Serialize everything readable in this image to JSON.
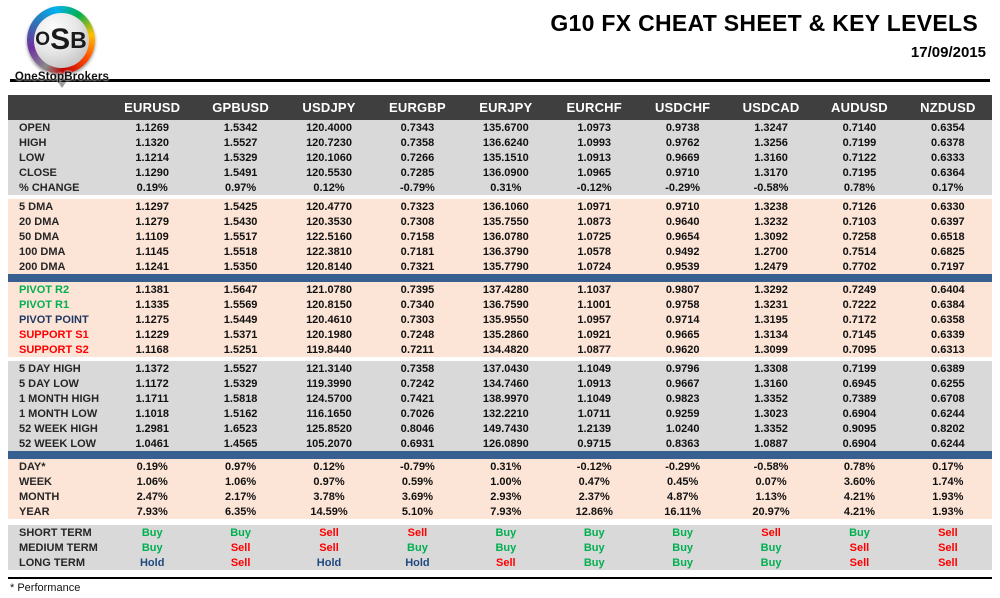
{
  "logo": {
    "abbr_parts": [
      "O",
      "S",
      "B"
    ],
    "name": "OneStopBrokers"
  },
  "header": {
    "title": "G10 FX CHEAT SHEET & KEY LEVELS",
    "date": "17/09/2015"
  },
  "footer": {
    "note": "* Performance"
  },
  "colors": {
    "header_bg": "#3f3f3f",
    "block_gray": "#d9d9d9",
    "block_peach": "#fce4d6",
    "divider_blue": "#376091",
    "buy_green": "#00b050",
    "sell_red": "#ff0000",
    "hold_blue": "#1f497d",
    "pivot_navy": "#1f3864"
  },
  "table": {
    "columns": [
      "EURUSD",
      "GPBUSD",
      "USDJPY",
      "EURGBP",
      "EURJPY",
      "EURCHF",
      "USDCHF",
      "USDCAD",
      "AUDUSD",
      "NZDUSD"
    ],
    "sections": [
      {
        "name": "ohlc",
        "bg": "gray",
        "after": "gap",
        "rows": [
          {
            "label": "OPEN",
            "values": [
              "1.1269",
              "1.5342",
              "120.4000",
              "0.7343",
              "135.6700",
              "1.0973",
              "0.9738",
              "1.3247",
              "0.7140",
              "0.6354"
            ]
          },
          {
            "label": "HIGH",
            "values": [
              "1.1320",
              "1.5527",
              "120.7230",
              "0.7358",
              "136.6240",
              "1.0993",
              "0.9762",
              "1.3256",
              "0.7199",
              "0.6378"
            ]
          },
          {
            "label": "LOW",
            "values": [
              "1.1214",
              "1.5329",
              "120.1060",
              "0.7266",
              "135.1510",
              "1.0913",
              "0.9669",
              "1.3160",
              "0.7122",
              "0.6333"
            ]
          },
          {
            "label": "CLOSE",
            "values": [
              "1.1290",
              "1.5491",
              "120.5530",
              "0.7285",
              "136.0900",
              "1.0965",
              "0.9710",
              "1.3170",
              "0.7195",
              "0.6364"
            ]
          },
          {
            "label": "% CHANGE",
            "values": [
              "0.19%",
              "0.97%",
              "0.12%",
              "-0.79%",
              "0.31%",
              "-0.12%",
              "-0.29%",
              "-0.58%",
              "0.78%",
              "0.17%"
            ]
          }
        ]
      },
      {
        "name": "moving-averages",
        "bg": "peach",
        "after": "divider",
        "rows": [
          {
            "label": "5 DMA",
            "values": [
              "1.1297",
              "1.5425",
              "120.4770",
              "0.7323",
              "136.1060",
              "1.0971",
              "0.9710",
              "1.3238",
              "0.7126",
              "0.6330"
            ]
          },
          {
            "label": "20 DMA",
            "values": [
              "1.1279",
              "1.5430",
              "120.3530",
              "0.7308",
              "135.7550",
              "1.0873",
              "0.9640",
              "1.3232",
              "0.7103",
              "0.6397"
            ]
          },
          {
            "label": "50 DMA",
            "values": [
              "1.1109",
              "1.5517",
              "122.5160",
              "0.7158",
              "136.0780",
              "1.0725",
              "0.9654",
              "1.3092",
              "0.7258",
              "0.6518"
            ]
          },
          {
            "label": "100 DMA",
            "values": [
              "1.1145",
              "1.5518",
              "122.3810",
              "0.7181",
              "136.3790",
              "1.0578",
              "0.9492",
              "1.2700",
              "0.7514",
              "0.6825"
            ]
          },
          {
            "label": "200 DMA",
            "values": [
              "1.1241",
              "1.5350",
              "120.8140",
              "0.7321",
              "135.7790",
              "1.0724",
              "0.9539",
              "1.2479",
              "0.7702",
              "0.7197"
            ]
          }
        ]
      },
      {
        "name": "pivots",
        "bg": "peach",
        "after": "gap",
        "rows": [
          {
            "label": "PIVOT R2",
            "label_color": "green",
            "values": [
              "1.1381",
              "1.5647",
              "121.0780",
              "0.7395",
              "137.4280",
              "1.1037",
              "0.9807",
              "1.3292",
              "0.7249",
              "0.6404"
            ]
          },
          {
            "label": "PIVOT R1",
            "label_color": "green",
            "values": [
              "1.1335",
              "1.5569",
              "120.8150",
              "0.7340",
              "136.7590",
              "1.1001",
              "0.9758",
              "1.3231",
              "0.7222",
              "0.6384"
            ]
          },
          {
            "label": "PIVOT POINT",
            "label_color": "navy",
            "values": [
              "1.1275",
              "1.5449",
              "120.4610",
              "0.7303",
              "135.9550",
              "1.0957",
              "0.9714",
              "1.3195",
              "0.7172",
              "0.6358"
            ]
          },
          {
            "label": "SUPPORT S1",
            "label_color": "red",
            "values": [
              "1.1229",
              "1.5371",
              "120.1980",
              "0.7248",
              "135.2860",
              "1.0921",
              "0.9665",
              "1.3134",
              "0.7145",
              "0.6339"
            ]
          },
          {
            "label": "SUPPORT S2",
            "label_color": "red",
            "values": [
              "1.1168",
              "1.5251",
              "119.8440",
              "0.7211",
              "134.4820",
              "1.0877",
              "0.9620",
              "1.3099",
              "0.7095",
              "0.6313"
            ]
          }
        ]
      },
      {
        "name": "ranges",
        "bg": "gray",
        "after": "divider",
        "rows": [
          {
            "label": "5 DAY HIGH",
            "values": [
              "1.1372",
              "1.5527",
              "121.3140",
              "0.7358",
              "137.0430",
              "1.1049",
              "0.9796",
              "1.3308",
              "0.7199",
              "0.6389"
            ]
          },
          {
            "label": "5 DAY LOW",
            "values": [
              "1.1172",
              "1.5329",
              "119.3990",
              "0.7242",
              "134.7460",
              "1.0913",
              "0.9667",
              "1.3160",
              "0.6945",
              "0.6255"
            ]
          },
          {
            "label": "1 MONTH HIGH",
            "values": [
              "1.1711",
              "1.5818",
              "124.5700",
              "0.7421",
              "138.9970",
              "1.1049",
              "0.9823",
              "1.3352",
              "0.7389",
              "0.6708"
            ]
          },
          {
            "label": "1 MONTH LOW",
            "values": [
              "1.1018",
              "1.5162",
              "116.1650",
              "0.7026",
              "132.2210",
              "1.0711",
              "0.9259",
              "1.3023",
              "0.6904",
              "0.6244"
            ]
          },
          {
            "label": "52 WEEK HIGH",
            "values": [
              "1.2981",
              "1.6523",
              "125.8520",
              "0.8046",
              "149.7430",
              "1.2139",
              "1.0240",
              "1.3352",
              "0.9095",
              "0.8202"
            ]
          },
          {
            "label": "52 WEEK LOW",
            "values": [
              "1.0461",
              "1.4565",
              "105.2070",
              "0.6931",
              "126.0890",
              "0.9715",
              "0.8363",
              "1.0887",
              "0.6904",
              "0.6244"
            ]
          }
        ]
      },
      {
        "name": "performance",
        "bg": "peach",
        "after": "gap-lg",
        "rows": [
          {
            "label": "DAY*",
            "values": [
              "0.19%",
              "0.97%",
              "0.12%",
              "-0.79%",
              "0.31%",
              "-0.12%",
              "-0.29%",
              "-0.58%",
              "0.78%",
              "0.17%"
            ]
          },
          {
            "label": "WEEK",
            "values": [
              "1.06%",
              "1.06%",
              "0.97%",
              "0.59%",
              "1.00%",
              "0.47%",
              "0.45%",
              "0.07%",
              "3.60%",
              "1.74%"
            ]
          },
          {
            "label": "MONTH",
            "values": [
              "2.47%",
              "2.17%",
              "3.78%",
              "3.69%",
              "2.93%",
              "2.37%",
              "4.87%",
              "1.13%",
              "4.21%",
              "1.93%"
            ]
          },
          {
            "label": "YEAR",
            "values": [
              "7.93%",
              "6.35%",
              "14.59%",
              "5.10%",
              "7.93%",
              "12.86%",
              "16.11%",
              "20.97%",
              "4.21%",
              "1.93%"
            ]
          }
        ]
      },
      {
        "name": "signals",
        "bg": "gray",
        "signals": true,
        "after": "none",
        "rows": [
          {
            "label": "SHORT TERM",
            "values": [
              "Buy",
              "Buy",
              "Sell",
              "Sell",
              "Buy",
              "Buy",
              "Buy",
              "Sell",
              "Buy",
              "Sell"
            ]
          },
          {
            "label": "MEDIUM TERM",
            "values": [
              "Buy",
              "Sell",
              "Sell",
              "Buy",
              "Buy",
              "Buy",
              "Buy",
              "Buy",
              "Sell",
              "Sell"
            ]
          },
          {
            "label": "LONG TERM",
            "values": [
              "Hold",
              "Sell",
              "Hold",
              "Hold",
              "Sell",
              "Buy",
              "Buy",
              "Buy",
              "Sell",
              "Sell"
            ]
          }
        ]
      }
    ]
  }
}
